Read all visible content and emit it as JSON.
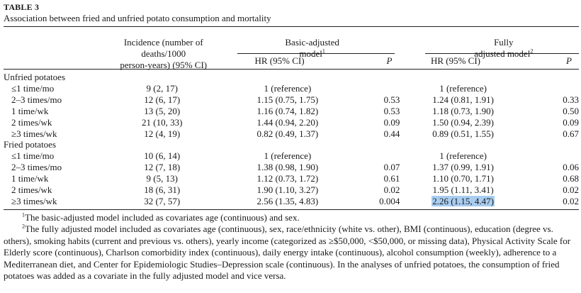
{
  "table": {
    "label": "TABLE 3",
    "caption": "Association between fried and unfried potato consumption and mortality",
    "header": {
      "incidence": [
        "Incidence (number of",
        "deaths/1000",
        "person-years) (95% CI)"
      ],
      "basic_model": [
        "Basic-adjusted",
        "model"
      ],
      "basic_model_sup": "1",
      "full_model": [
        "Fully",
        "adjusted model"
      ],
      "full_model_sup": "2",
      "hr_label": "HR (95% CI)",
      "p_label": "P"
    },
    "sections": [
      {
        "title": "Unfried potatoes",
        "rows": [
          {
            "label": "≤1 time/mo",
            "incidence": "9 (2, 17)",
            "hr1": "1 (reference)",
            "p1": "",
            "hr2": "1 (reference)",
            "p2": ""
          },
          {
            "label": "2–3 times/mo",
            "incidence": "12 (6, 17)",
            "hr1": "1.15 (0.75, 1.75)",
            "p1": "0.53",
            "hr2": "1.24 (0.81, 1.91)",
            "p2": "0.33"
          },
          {
            "label": "1 time/wk",
            "incidence": "13 (5, 20)",
            "hr1": "1.16 (0.74, 1.82)",
            "p1": "0.53",
            "hr2": "1.18 (0.73, 1.90)",
            "p2": "0.50"
          },
          {
            "label": "2 times/wk",
            "incidence": "21 (10, 33)",
            "hr1": "1.44 (0.94, 2.20)",
            "p1": "0.09",
            "hr2": "1.50 (0.94, 2.39)",
            "p2": "0.09"
          },
          {
            "label": "≥3 times/wk",
            "incidence": "12 (4, 19)",
            "hr1": "0.82 (0.49, 1.37)",
            "p1": "0.44",
            "hr2": "0.89 (0.51, 1.55)",
            "p2": "0.67"
          }
        ]
      },
      {
        "title": "Fried potatoes",
        "rows": [
          {
            "label": "≤1 time/mo",
            "incidence": "10 (6, 14)",
            "hr1": "1 (reference)",
            "p1": "",
            "hr2": "1 (reference)",
            "p2": ""
          },
          {
            "label": "2–3 times/mo",
            "incidence": "12 (7, 18)",
            "hr1": "1.38 (0.98, 1.90)",
            "p1": "0.07",
            "hr2": "1.37 (0.99, 1.91)",
            "p2": "0.06"
          },
          {
            "label": "1 time/wk",
            "incidence": "9 (5, 13)",
            "hr1": "1.12 (0.73, 1.72)",
            "p1": "0.61",
            "hr2": "1.10 (0.70, 1.71)",
            "p2": "0.68"
          },
          {
            "label": "2 times/wk",
            "incidence": "18 (6, 31)",
            "hr1": "1.90 (1.10, 3.27)",
            "p1": "0.02",
            "hr2": "1.95 (1.11, 3.41)",
            "p2": "0.02"
          },
          {
            "label": "≥3 times/wk",
            "incidence": "32 (7, 57)",
            "hr1": "2.56 (1.35, 4.83)",
            "p1": "0.004",
            "hr2": "2.26 (1.15, 4.47)",
            "p2": "0.02"
          }
        ]
      }
    ],
    "highlight_color": "#a9cdf0",
    "footnotes": [
      {
        "marker": "1",
        "text": "The basic-adjusted model included as covariates age (continuous) and sex."
      },
      {
        "marker": "2",
        "text": "The fully adjusted model included as covariates age (continuous), sex, race/ethnicity (white vs. other), BMI (continuous), education (degree vs. others), smoking habits (current and previous vs. others), yearly income (categorized as ≥$50,000, <$50,000, or missing data), Physical Activity Scale for Elderly score (continuous), Charlson comorbidity index (continuous), daily energy intake (continuous), alcohol consumption (weekly), adherence to a Mediterranean diet, and Center for Epidemiologic Studies–Depression scale (continuous). In the analyses of unfried potatoes, the consumption of fried potatoes was added as a covariate in the fully adjusted model and vice versa."
      }
    ]
  }
}
